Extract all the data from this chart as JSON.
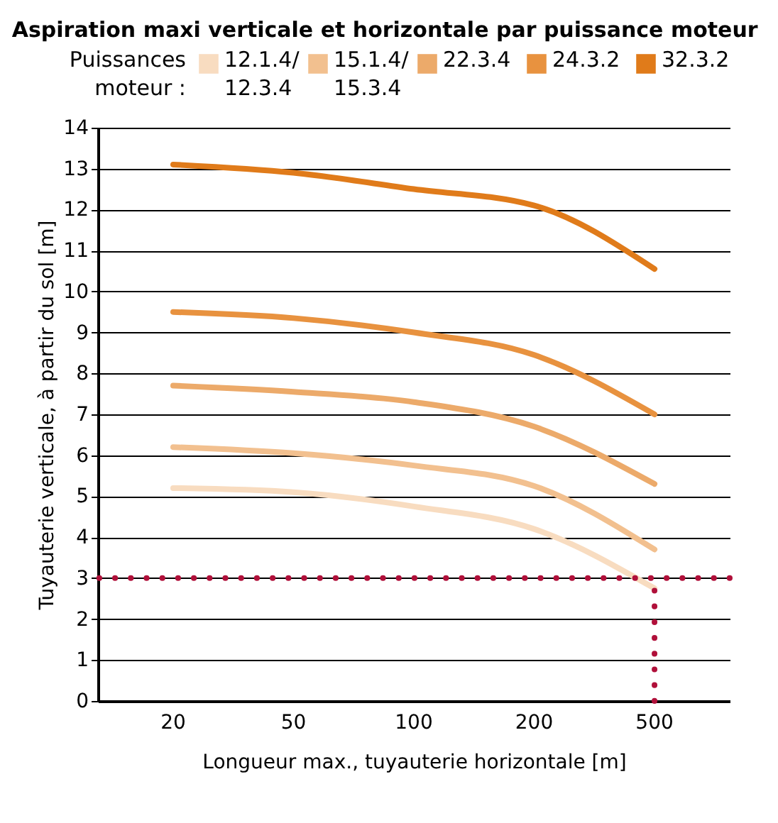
{
  "chart_data": {
    "type": "line",
    "title": "Aspiration maxi verticale et horizontale par puissance moteur",
    "legend_title": "Puissances moteur :",
    "xlabel": "Longueur max., tuyauterie horizontale [m]",
    "ylabel": "Tuyauterie verticale, à partir du sol [m]",
    "categories": [
      "20",
      "50",
      "100",
      "200",
      "500"
    ],
    "series": [
      {
        "name": "12.1.4/12.3.4",
        "color": "#f8dcc0",
        "values": [
          5.2,
          5.1,
          4.75,
          4.2,
          2.75
        ]
      },
      {
        "name": "15.1.4/15.3.4",
        "color": "#f2c08f",
        "values": [
          6.2,
          6.05,
          5.75,
          5.25,
          3.7
        ]
      },
      {
        "name": "22.3.4",
        "color": "#ecaa6a",
        "values": [
          7.7,
          7.55,
          7.3,
          6.7,
          5.3
        ]
      },
      {
        "name": "24.3.2",
        "color": "#e8923f",
        "values": [
          9.5,
          9.35,
          9.0,
          8.45,
          7.0
        ]
      },
      {
        "name": "32.3.2",
        "color": "#e07b1a",
        "values": [
          13.1,
          12.9,
          12.5,
          12.1,
          10.55
        ]
      }
    ],
    "ylim": [
      0,
      14
    ],
    "yticks": [
      0,
      1,
      2,
      3,
      4,
      5,
      6,
      7,
      8,
      9,
      10,
      11,
      12,
      13,
      14
    ],
    "ref_lines": [
      {
        "axis": "y",
        "value": 3,
        "color": "#b0103a",
        "line_style": "dotted"
      },
      {
        "axis": "x",
        "value": "500",
        "color": "#b0103a",
        "line_style": "dotted"
      }
    ],
    "grid": "y",
    "legend": "top",
    "marker": "none",
    "line_style": "solid"
  }
}
